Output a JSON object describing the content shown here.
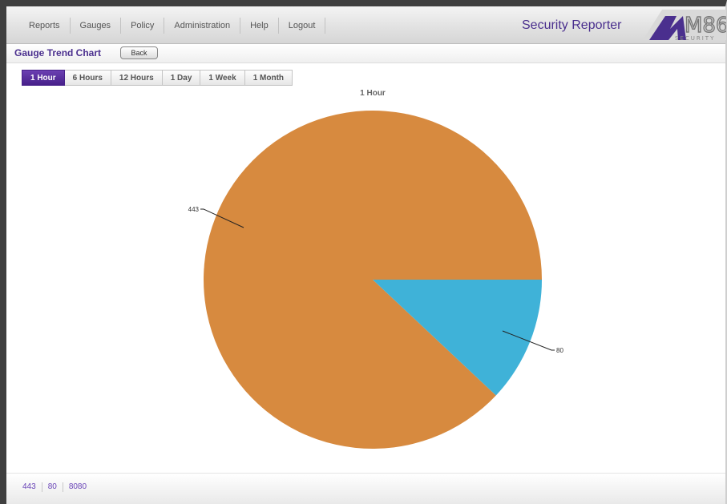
{
  "nav": {
    "items": [
      "Reports",
      "Gauges",
      "Policy",
      "Administration",
      "Help",
      "Logout"
    ],
    "brand_title": "Security Reporter"
  },
  "page": {
    "title": "Gauge Trend Chart",
    "back_label": "Back"
  },
  "tabs": {
    "items": [
      "1 Hour",
      "6 Hours",
      "12 Hours",
      "1 Day",
      "1 Week",
      "1 Month"
    ],
    "active": "1 Hour"
  },
  "chart_data": {
    "type": "pie",
    "title": "1 Hour",
    "slices": [
      {
        "label": "443",
        "value": 88,
        "color": "#d78a3f"
      },
      {
        "label": "80",
        "value": 12,
        "color": "#3fb2d8"
      }
    ]
  },
  "footer": {
    "legend": [
      "443",
      "80",
      "8080"
    ]
  },
  "colors": {
    "brand_purple": "#4a2f8e",
    "slice_443": "#d78a3f",
    "slice_80": "#3fb2d8"
  },
  "logo": {
    "text": "M86",
    "subtitle": "SECURITY"
  }
}
